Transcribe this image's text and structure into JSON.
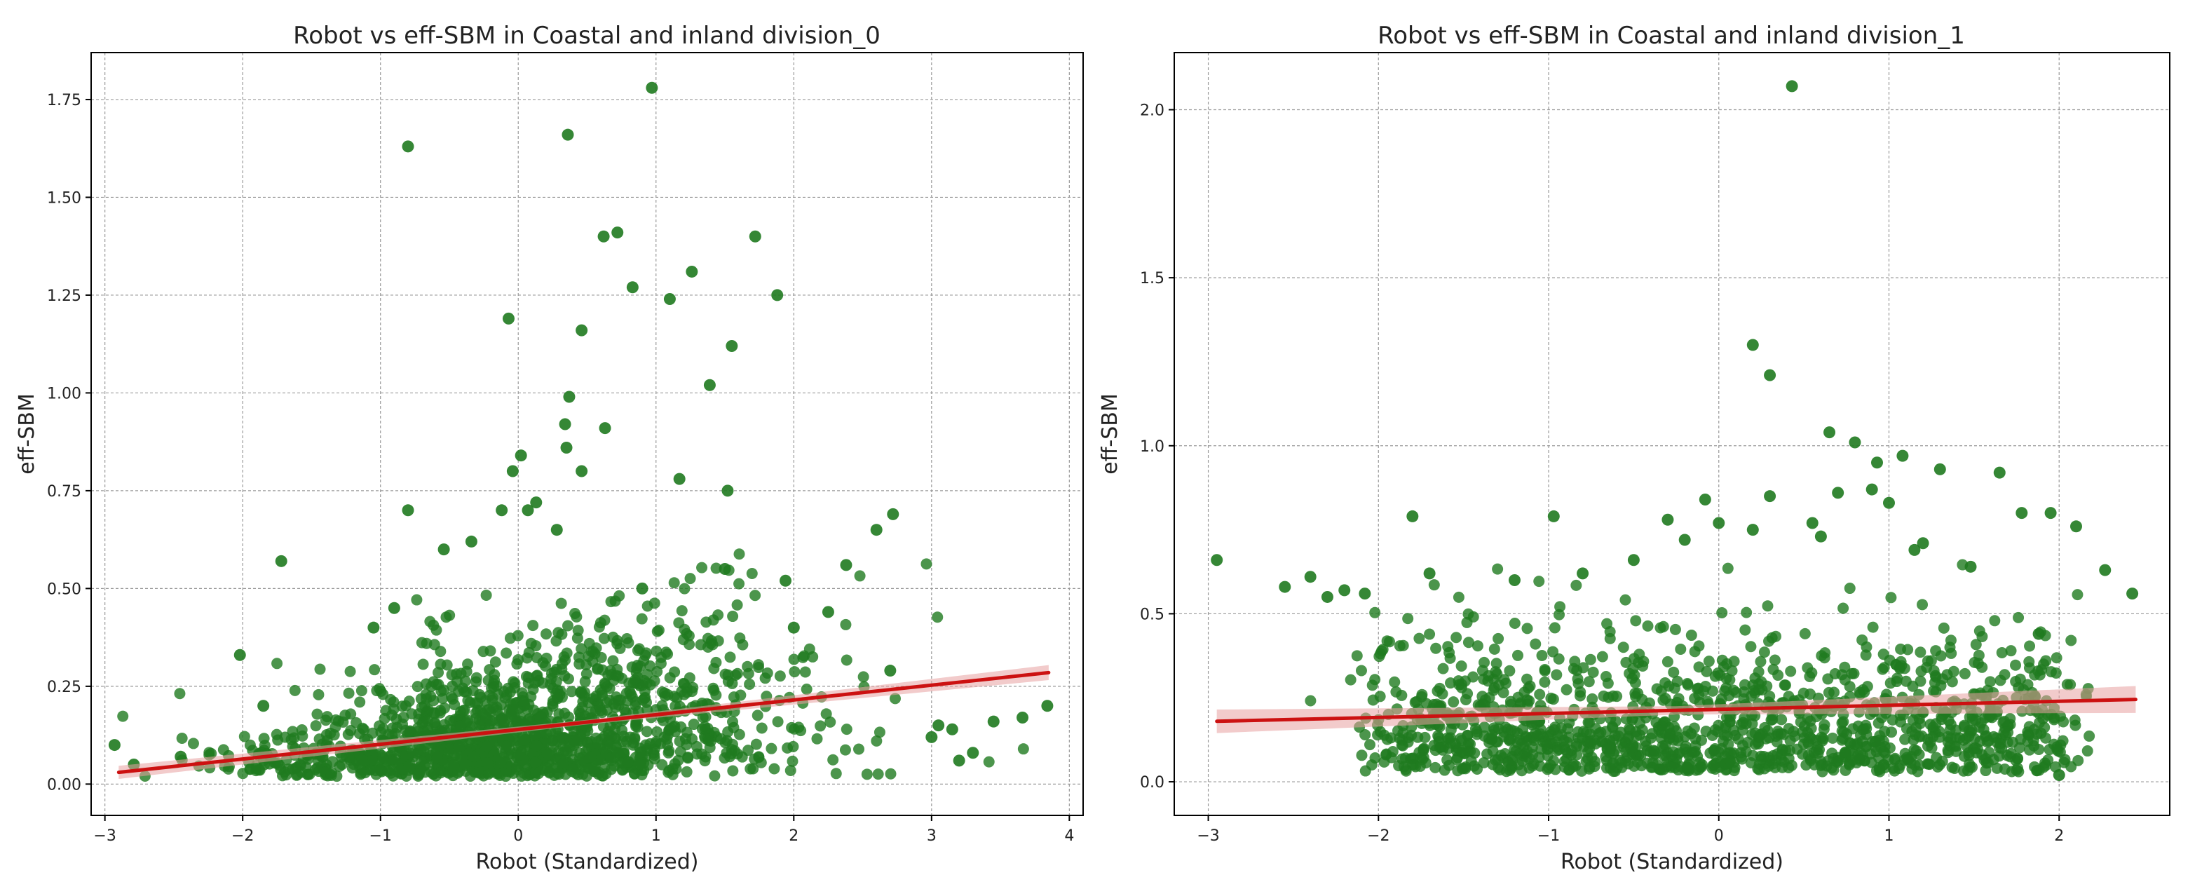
{
  "chart_data": [
    {
      "type": "scatter",
      "title": "Robot vs eff-SBM in Coastal and inland division_0",
      "xlabel": "Robot (Standardized)",
      "ylabel": "eff-SBM",
      "xlim": [
        -3.1,
        4.1
      ],
      "ylim": [
        -0.08,
        1.87
      ],
      "xticks": [
        -3,
        -2,
        -1,
        0,
        1,
        2,
        3,
        4
      ],
      "xtick_labels": [
        "−3",
        "−2",
        "−1",
        "0",
        "1",
        "2",
        "3",
        "4"
      ],
      "yticks": [
        0.0,
        0.25,
        0.5,
        0.75,
        1.0,
        1.25,
        1.5,
        1.75
      ],
      "ytick_labels": [
        "0.00",
        "0.25",
        "0.50",
        "0.75",
        "1.00",
        "1.25",
        "1.50",
        "1.75"
      ],
      "grid": true,
      "point_color": "#1f7a1f",
      "line_color": "#cc1111",
      "band_color": "#e8a0a0",
      "regression": {
        "x": [
          -2.9,
          3.85
        ],
        "y": [
          0.03,
          0.285
        ],
        "ci": 0.012
      },
      "points": {
        "x": [
          0.97,
          -0.8,
          0.36,
          0.72,
          0.62,
          1.72,
          1.26,
          0.83,
          1.88,
          1.1,
          -0.07,
          0.46,
          1.55,
          1.39,
          0.37,
          0.34,
          0.63,
          0.35,
          -0.04,
          0.02,
          0.46,
          1.17,
          0.13,
          1.52,
          -0.8,
          2.72,
          -0.54,
          -0.34,
          -1.72,
          1.94,
          -2.02,
          -1.05,
          0.28,
          0.07,
          -0.12,
          2.6,
          2.38,
          2.25,
          3.84,
          3.66,
          3.45,
          3.05,
          3.15,
          3.3,
          -2.93,
          -2.79,
          -2.45,
          -1.85,
          -0.9,
          0.9,
          1.5,
          2.0,
          2.7,
          3.0,
          3.2
        ],
        "y": [
          1.78,
          1.63,
          1.66,
          1.41,
          1.4,
          1.4,
          1.31,
          1.27,
          1.25,
          1.24,
          1.19,
          1.16,
          1.12,
          1.02,
          0.99,
          0.92,
          0.91,
          0.86,
          0.8,
          0.84,
          0.8,
          0.78,
          0.72,
          0.75,
          0.7,
          0.69,
          0.6,
          0.62,
          0.57,
          0.52,
          0.33,
          0.4,
          0.65,
          0.7,
          0.7,
          0.65,
          0.56,
          0.44,
          0.2,
          0.17,
          0.16,
          0.15,
          0.14,
          0.08,
          0.1,
          0.05,
          0.07,
          0.2,
          0.45,
          0.5,
          0.55,
          0.4,
          0.29,
          0.12,
          0.06
        ]
      }
    },
    {
      "type": "scatter",
      "title": "Robot vs eff-SBM in Coastal and inland division_1",
      "xlabel": "Robot (Standardized)",
      "ylabel": "eff-SBM",
      "xlim": [
        -3.2,
        2.65
      ],
      "ylim": [
        -0.1,
        2.17
      ],
      "xticks": [
        -3,
        -2,
        -1,
        0,
        1,
        2
      ],
      "xtick_labels": [
        "−3",
        "−2",
        "−1",
        "0",
        "1",
        "2"
      ],
      "yticks": [
        0.0,
        0.5,
        1.0,
        1.5,
        2.0
      ],
      "ytick_labels": [
        "0.0",
        "0.5",
        "1.0",
        "1.5",
        "2.0"
      ],
      "grid": true,
      "point_color": "#1f7a1f",
      "line_color": "#cc1111",
      "band_color": "#e8a0a0",
      "regression": {
        "x": [
          -2.95,
          2.45
        ],
        "y": [
          0.18,
          0.245
        ],
        "ci": 0.025
      },
      "points": {
        "x": [
          0.43,
          0.2,
          0.3,
          0.65,
          0.8,
          0.93,
          1.08,
          1.3,
          1.65,
          -0.08,
          0.3,
          -0.97,
          -1.8,
          -0.3,
          2.1,
          2.43,
          2.27,
          1.78,
          1.95,
          -2.95,
          -2.55,
          -2.4,
          -2.3,
          -1.7,
          1.48,
          1.15,
          0.7,
          0.55,
          0.0,
          -0.5,
          -1.2,
          -0.8,
          0.9,
          1.0,
          0.2,
          -0.2,
          2.0,
          1.88,
          -2.08,
          -2.2,
          1.2,
          0.6
        ],
        "y": [
          2.07,
          1.3,
          1.21,
          1.04,
          1.01,
          0.95,
          0.97,
          0.93,
          0.92,
          0.84,
          0.85,
          0.79,
          0.79,
          0.78,
          0.76,
          0.56,
          0.63,
          0.8,
          0.8,
          0.66,
          0.58,
          0.61,
          0.55,
          0.62,
          0.64,
          0.69,
          0.86,
          0.77,
          0.77,
          0.66,
          0.6,
          0.62,
          0.87,
          0.83,
          0.75,
          0.72,
          0.02,
          0.44,
          0.56,
          0.57,
          0.71,
          0.73
        ]
      }
    }
  ]
}
